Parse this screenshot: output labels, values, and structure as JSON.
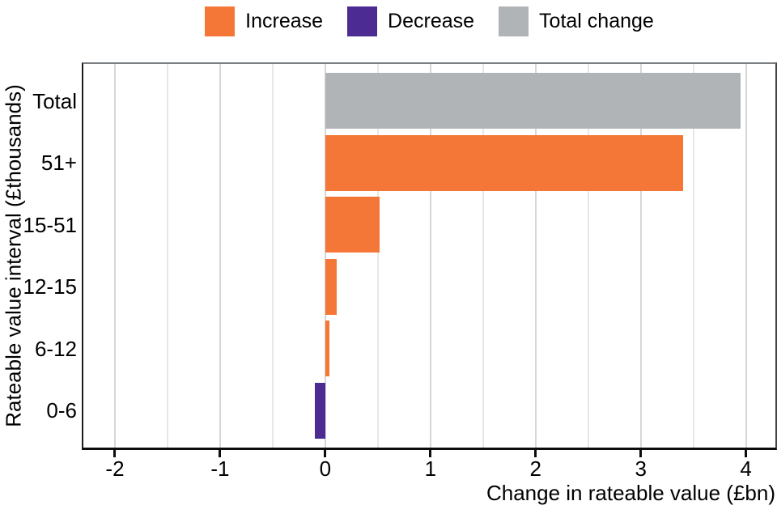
{
  "chart_data": {
    "type": "bar",
    "orientation": "horizontal",
    "xlabel": "Change in rateable value (£bn)",
    "ylabel": "Rateable value interval (£thousands)",
    "categories": [
      "Total",
      "51+",
      "15-51",
      "12-15",
      "6-12",
      "0-6"
    ],
    "series_of_bar": [
      "Total change",
      "Increase",
      "Increase",
      "Increase",
      "Increase",
      "Decrease"
    ],
    "values": [
      3.95,
      3.4,
      0.52,
      0.11,
      0.04,
      -0.1
    ],
    "xlim": [
      -2.3,
      4.28
    ],
    "x_major_ticks": [
      -2,
      -1,
      0,
      1,
      2,
      3,
      4
    ],
    "x_minor_ticks": [
      -1.5,
      -0.5,
      0.5,
      1.5,
      2.5,
      3.5
    ],
    "grid": "vertical-major-and-minor",
    "legend_position": "top",
    "legend": [
      {
        "label": "Increase",
        "color": "#F47738"
      },
      {
        "label": "Decrease",
        "color": "#4C2C92"
      },
      {
        "label": "Total change",
        "color": "#B1B4B6"
      }
    ],
    "colors": {
      "increase": "#F47738",
      "decrease": "#4C2C92",
      "total_change": "#B1B4B6",
      "gridline_major": "#D7D7D7",
      "gridline_minor": "#E7E7E7",
      "axis_line": "#0B0C0C",
      "text": "#000000"
    }
  }
}
